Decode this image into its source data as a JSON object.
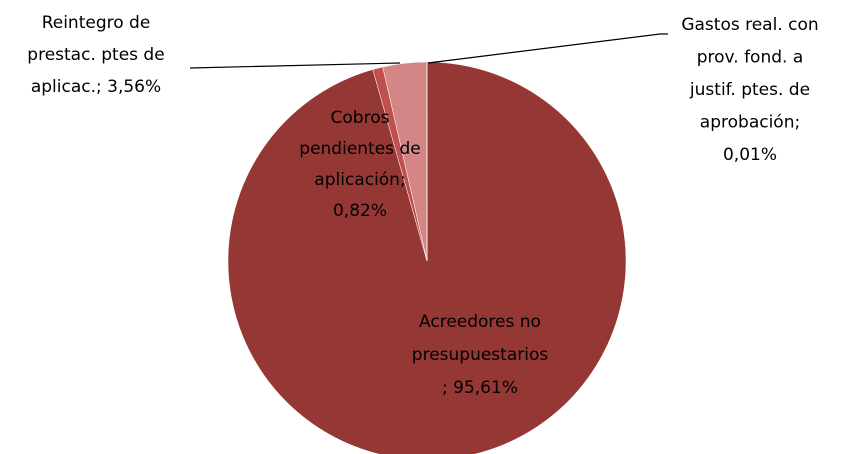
{
  "chart_data": {
    "type": "pie",
    "categories": [
      "Acreedores no presupuestarios",
      "Cobros pendientes de aplicación",
      "Reintegro de prestac. ptes de aplicac.",
      "Gastos real. con prov. fond. a justif. ptes. de aprobación"
    ],
    "values": [
      95.61,
      0.82,
      3.56,
      0.01
    ],
    "value_labels": [
      [
        "Acreedores no",
        "presupuestarios",
        "; 95,61%"
      ],
      [
        "Cobros",
        "pendientes de",
        "aplicación;",
        "0,82%"
      ],
      [
        "Reintegro de",
        "prestac. ptes de",
        "aplicac.; 3,56%"
      ],
      [
        "Gastos real. con",
        "prov. fond. a",
        "justif. ptes. de",
        "aprobación;",
        "0,01%"
      ]
    ],
    "colors": [
      "#953735",
      "#c0504d",
      "#d48687",
      "#e6b9b8"
    ]
  }
}
